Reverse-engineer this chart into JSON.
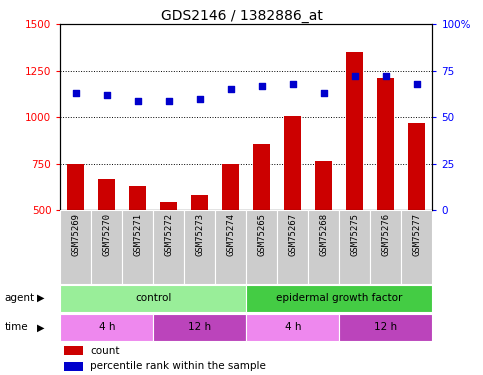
{
  "title": "GDS2146 / 1382886_at",
  "samples": [
    "GSM75269",
    "GSM75270",
    "GSM75271",
    "GSM75272",
    "GSM75273",
    "GSM75274",
    "GSM75265",
    "GSM75267",
    "GSM75268",
    "GSM75275",
    "GSM75276",
    "GSM75277"
  ],
  "counts": [
    750,
    670,
    630,
    545,
    580,
    748,
    855,
    1005,
    768,
    1350,
    1210,
    970
  ],
  "percentiles": [
    63,
    62,
    59,
    59,
    60,
    65,
    67,
    68,
    63,
    72,
    72,
    68
  ],
  "ylim_left": [
    500,
    1500
  ],
  "ylim_right": [
    0,
    100
  ],
  "yticks_left": [
    500,
    750,
    1000,
    1250,
    1500
  ],
  "yticks_right": [
    0,
    25,
    50,
    75,
    100
  ],
  "bar_color": "#cc0000",
  "scatter_color": "#0000cc",
  "agent_groups": [
    {
      "label": "control",
      "start": 0,
      "end": 6,
      "color": "#99ee99"
    },
    {
      "label": "epidermal growth factor",
      "start": 6,
      "end": 12,
      "color": "#44cc44"
    }
  ],
  "time_groups": [
    {
      "label": "4 h",
      "start": 0,
      "end": 3,
      "color": "#ee88ee"
    },
    {
      "label": "12 h",
      "start": 3,
      "end": 6,
      "color": "#bb44bb"
    },
    {
      "label": "4 h",
      "start": 6,
      "end": 9,
      "color": "#ee88ee"
    },
    {
      "label": "12 h",
      "start": 9,
      "end": 12,
      "color": "#bb44bb"
    }
  ],
  "bg_color": "#ffffff",
  "left_color": "red",
  "right_color": "blue",
  "title_fontsize": 10,
  "tick_fontsize": 7.5,
  "label_fontsize": 7.5,
  "sample_fontsize": 6.5,
  "bar_width": 0.55
}
